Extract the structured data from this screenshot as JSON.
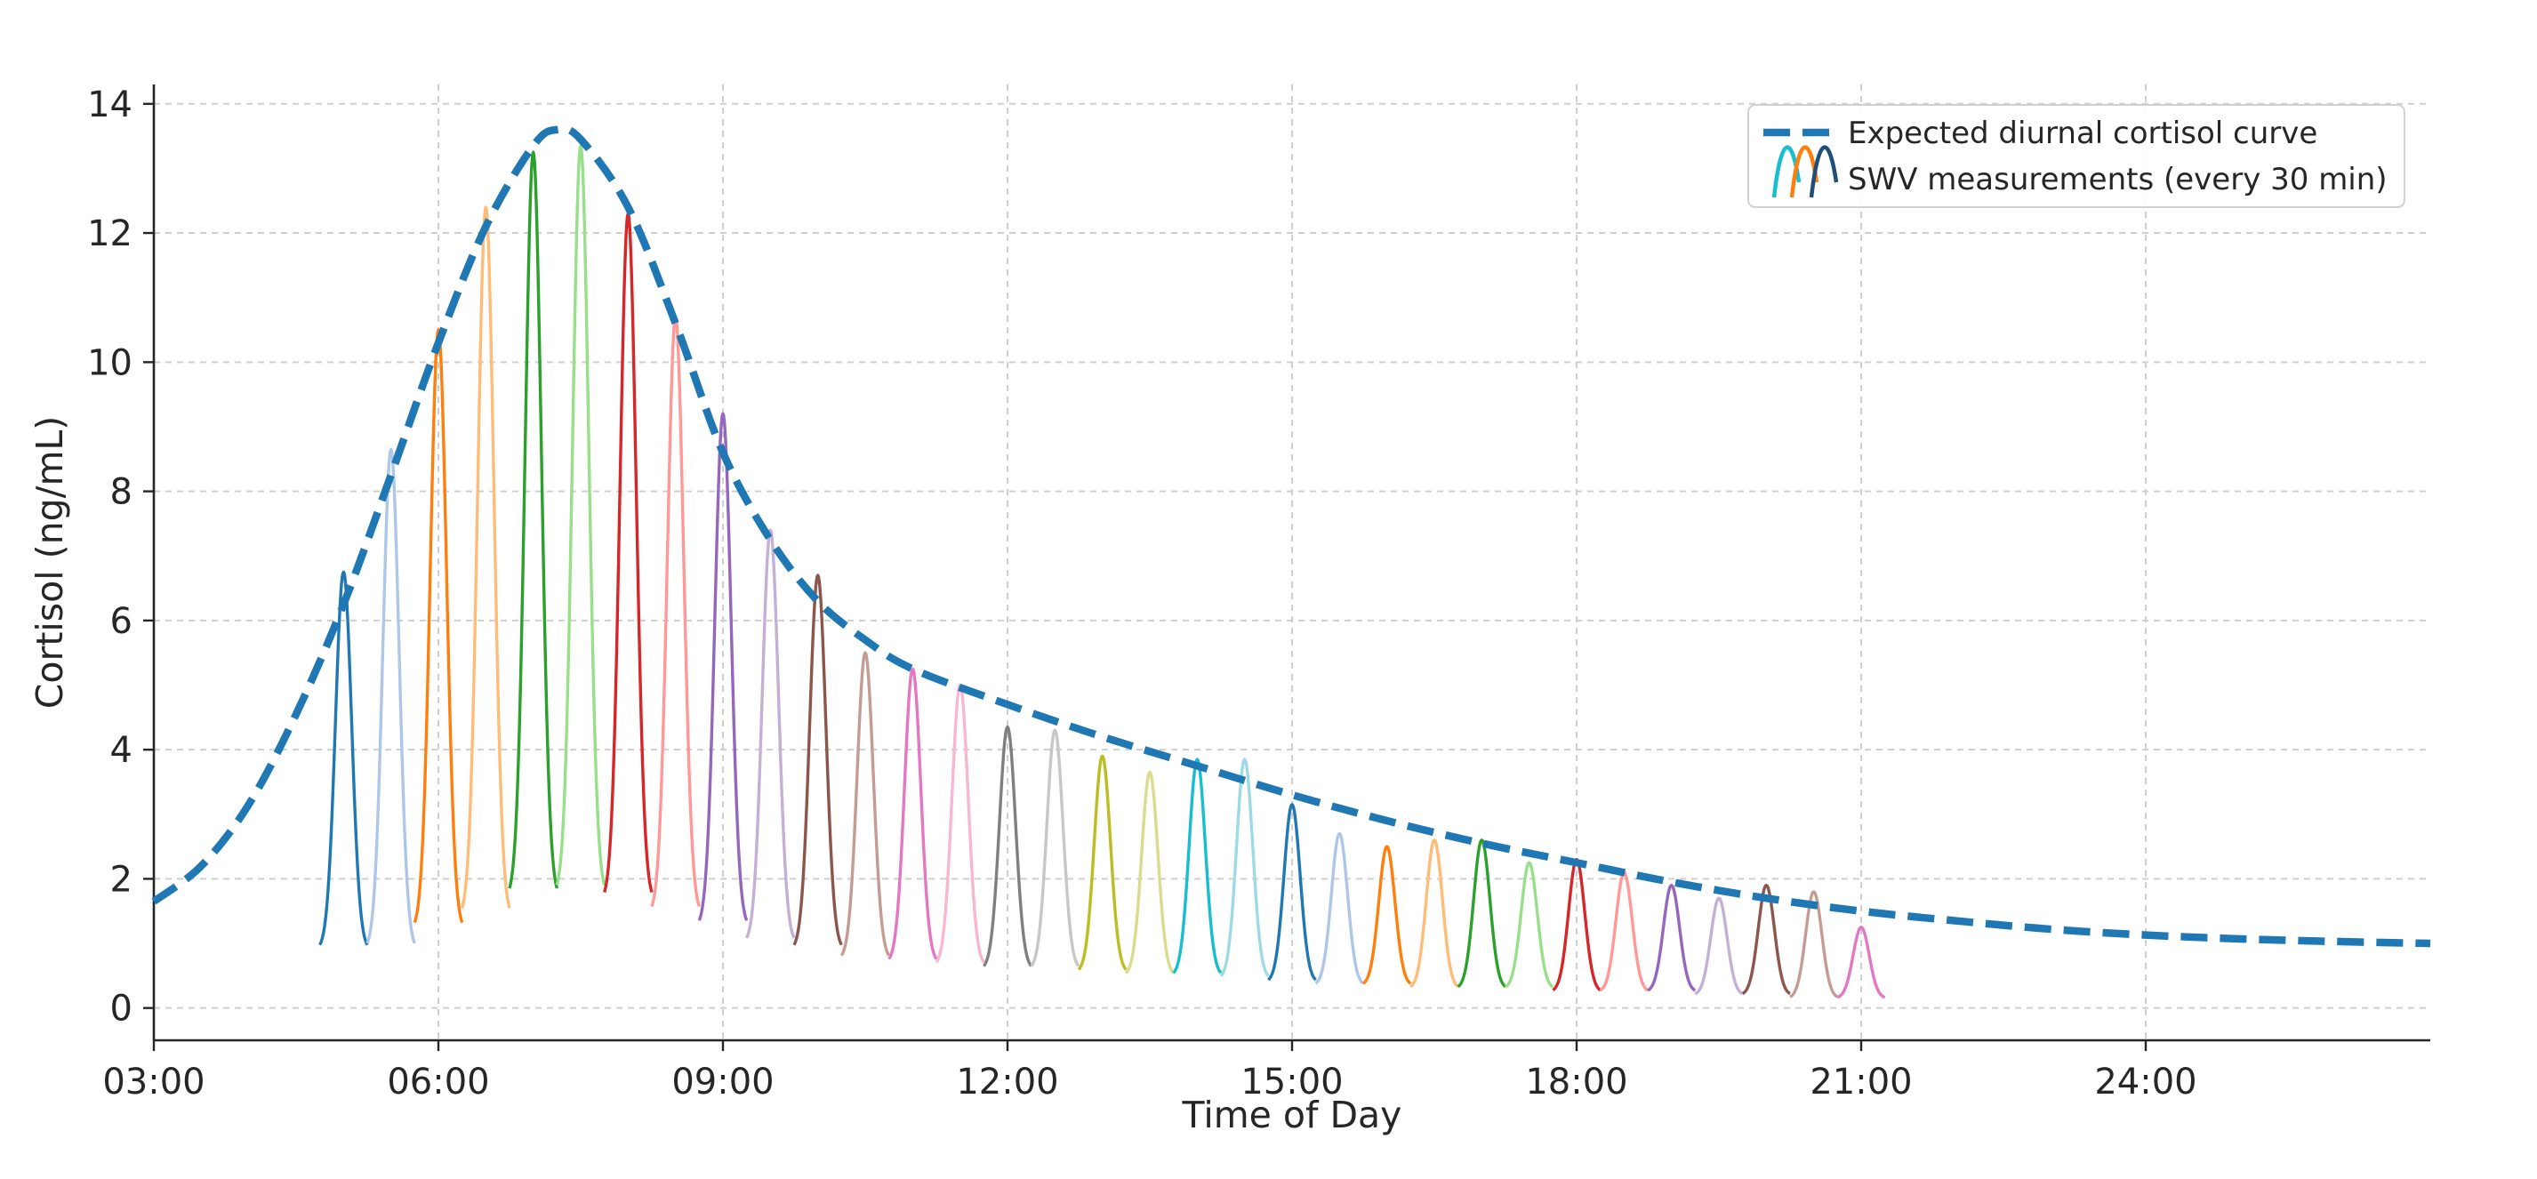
{
  "chart_data": {
    "type": "line",
    "title": "",
    "xlabel": "Time of Day",
    "ylabel": "Cortisol (ng/mL)",
    "xlim": [
      3,
      27
    ],
    "ylim": [
      -0.5,
      14.3
    ],
    "grid": true,
    "legend_placement": "top-right",
    "xticks": [
      {
        "value": 3,
        "label": "03:00"
      },
      {
        "value": 6,
        "label": "06:00"
      },
      {
        "value": 9,
        "label": "09:00"
      },
      {
        "value": 12,
        "label": "12:00"
      },
      {
        "value": 15,
        "label": "15:00"
      },
      {
        "value": 18,
        "label": "18:00"
      },
      {
        "value": 21,
        "label": "21:00"
      },
      {
        "value": 24,
        "label": "24:00"
      }
    ],
    "yticks": [
      {
        "value": 0,
        "label": "0"
      },
      {
        "value": 2,
        "label": "2"
      },
      {
        "value": 4,
        "label": "4"
      },
      {
        "value": 6,
        "label": "6"
      },
      {
        "value": 8,
        "label": "8"
      },
      {
        "value": 10,
        "label": "10"
      },
      {
        "value": 12,
        "label": "12"
      },
      {
        "value": 14,
        "label": "14"
      }
    ],
    "legend": [
      {
        "label": "Expected diurnal cortisol curve"
      },
      {
        "label": "SWV measurements (every 30 min)"
      }
    ],
    "expected_curve": {
      "name": "Expected diurnal cortisol curve",
      "color": "#1f77b4",
      "x": [
        3.0,
        3.5,
        4.0,
        4.5,
        5.0,
        5.5,
        6.0,
        6.5,
        7.0,
        7.25,
        7.5,
        8.0,
        8.5,
        9.0,
        9.5,
        10.0,
        10.5,
        11.0,
        12.0,
        13.0,
        14.0,
        15.0,
        16.0,
        17.0,
        18.0,
        19.0,
        20.0,
        21.0,
        22.0,
        23.0,
        24.0,
        25.0,
        26.0,
        27.0
      ],
      "y": [
        1.65,
        2.2,
        3.15,
        4.55,
        6.25,
        8.25,
        10.3,
        12.1,
        13.35,
        13.6,
        13.45,
        12.4,
        10.6,
        8.6,
        7.25,
        6.3,
        5.7,
        5.25,
        4.7,
        4.2,
        3.75,
        3.3,
        2.9,
        2.55,
        2.25,
        1.95,
        1.7,
        1.5,
        1.35,
        1.22,
        1.13,
        1.07,
        1.03,
        1.0
      ]
    },
    "swv_measurements": {
      "name": "SWV measurements (every 30 min)",
      "baseline": [
        0.9,
        0.9,
        1.2,
        1.4,
        1.7,
        1.75,
        1.65,
        1.45,
        1.25,
        1.0,
        0.9,
        0.75,
        0.7,
        0.65,
        0.6,
        0.6,
        0.55,
        0.5,
        0.5,
        0.45,
        0.4,
        0.35,
        0.35,
        0.3,
        0.3,
        0.3,
        0.25,
        0.25,
        0.25,
        0.2,
        0.2,
        0.15,
        0.15
      ],
      "times": [
        5.0,
        5.5,
        6.0,
        6.5,
        7.0,
        7.5,
        8.0,
        8.5,
        9.0,
        9.5,
        10.0,
        10.5,
        11.0,
        11.5,
        12.0,
        12.5,
        13.0,
        13.5,
        14.0,
        14.5,
        15.0,
        15.5,
        16.0,
        16.5,
        17.0,
        17.5,
        18.0,
        18.5,
        19.0,
        19.5,
        20.0,
        20.5,
        21.0
      ],
      "peaks": [
        6.75,
        8.65,
        10.5,
        12.4,
        13.25,
        13.35,
        12.3,
        10.7,
        9.2,
        7.4,
        6.7,
        5.5,
        5.25,
        5.0,
        4.35,
        4.3,
        3.9,
        3.65,
        3.85,
        3.85,
        3.15,
        2.7,
        2.5,
        2.6,
        2.6,
        2.25,
        2.3,
        2.1,
        1.9,
        1.7,
        1.9,
        1.8,
        1.25
      ],
      "colors": [
        "#1f77b4",
        "#aec7e8",
        "#ff7f0e",
        "#ffbb78",
        "#2ca02c",
        "#98df8a",
        "#d62728",
        "#ff9896",
        "#9467bd",
        "#c5b0d5",
        "#8c564b",
        "#c49c94",
        "#e377c2",
        "#f7b6d2",
        "#7f7f7f",
        "#c7c7c7",
        "#bcbd22",
        "#dbdb8d",
        "#17becf",
        "#9edae5",
        "#1f77b4",
        "#aec7e8",
        "#ff7f0e",
        "#ffbb78",
        "#2ca02c",
        "#98df8a",
        "#d62728",
        "#ff9896",
        "#9467bd",
        "#c5b0d5",
        "#8c564b",
        "#c49c94",
        "#e377c2"
      ]
    },
    "legend_icon_colors": [
      "#17becf",
      "#ff7f0e",
      "#1f4e79"
    ]
  }
}
